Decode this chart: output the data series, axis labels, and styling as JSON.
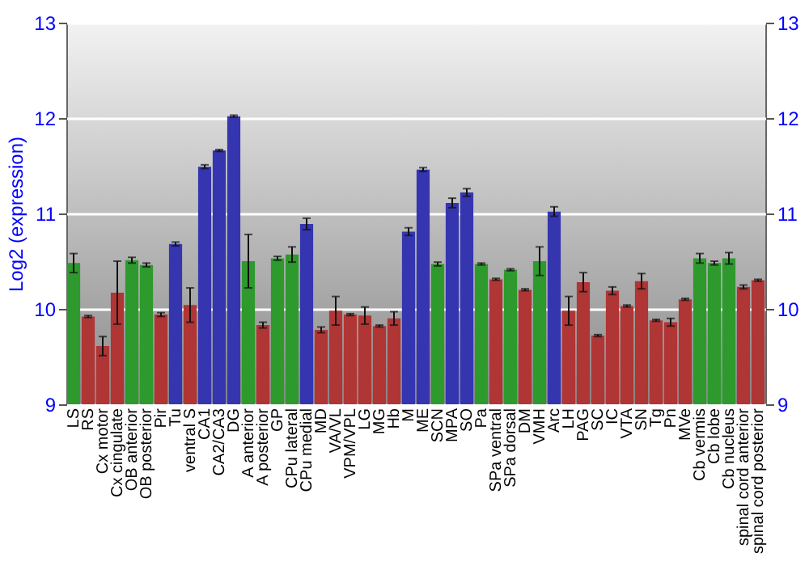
{
  "chart_data": {
    "type": "bar",
    "ylabel": "Log2 (expression)",
    "categories": [
      "LS",
      "RS",
      "Cx motor",
      "Cx cingulate",
      "OB anterior",
      "OB posterior",
      "Pir",
      "Tu",
      "ventral S",
      "CA1",
      "CA2/CA3",
      "DG",
      "A anterior",
      "A posterior",
      "GP",
      "CPu lateral",
      "CPu medial",
      "MD",
      "VA/VL",
      "VPM/VPL",
      "LG",
      "MG",
      "Hb",
      "M",
      "ME",
      "SCN",
      "MPA",
      "SO",
      "Pa",
      "SPa ventral",
      "SPa dorsal",
      "DM",
      "VMH",
      "Arc",
      "LH",
      "PAG",
      "SC",
      "IC",
      "VTA",
      "SN",
      "Tg",
      "Pn",
      "MVe",
      "Cb vermis",
      "Cb lobe",
      "Cb nucleus",
      "spinal cord anterior",
      "spinal cord posterior"
    ],
    "values": [
      10.48,
      9.92,
      9.61,
      10.17,
      10.51,
      10.46,
      9.94,
      10.68,
      10.04,
      11.49,
      11.66,
      12.02,
      10.5,
      9.83,
      10.53,
      10.57,
      10.89,
      9.78,
      9.98,
      9.94,
      9.93,
      9.82,
      9.9,
      10.81,
      11.46,
      10.47,
      11.11,
      11.22,
      10.47,
      10.31,
      10.41,
      10.2,
      10.5,
      11.02,
      9.98,
      10.28,
      9.72,
      10.19,
      10.03,
      10.29,
      9.88,
      9.86,
      10.1,
      10.53,
      10.48,
      10.53,
      10.23,
      10.3
    ],
    "errors": [
      0.1,
      0.01,
      0.1,
      0.33,
      0.03,
      0.02,
      0.02,
      0.02,
      0.18,
      0.02,
      0.01,
      0.01,
      0.28,
      0.03,
      0.02,
      0.08,
      0.06,
      0.03,
      0.15,
      0.01,
      0.09,
      0.01,
      0.07,
      0.04,
      0.02,
      0.02,
      0.05,
      0.04,
      0.01,
      0.01,
      0.01,
      0.01,
      0.15,
      0.05,
      0.15,
      0.1,
      0.01,
      0.04,
      0.01,
      0.08,
      0.01,
      0.04,
      0.01,
      0.05,
      0.02,
      0.06,
      0.02,
      0.01
    ],
    "colors": [
      "#2e9a2e",
      "#b03535",
      "#b03535",
      "#b03535",
      "#2e9a2e",
      "#2e9a2e",
      "#b03535",
      "#3535b0",
      "#b03535",
      "#3535b0",
      "#3535b0",
      "#3535b0",
      "#2e9a2e",
      "#b03535",
      "#2e9a2e",
      "#2e9a2e",
      "#3535b0",
      "#b03535",
      "#b03535",
      "#b03535",
      "#b03535",
      "#b03535",
      "#b03535",
      "#3535b0",
      "#3535b0",
      "#2e9a2e",
      "#3535b0",
      "#3535b0",
      "#2e9a2e",
      "#b03535",
      "#2e9a2e",
      "#b03535",
      "#2e9a2e",
      "#3535b0",
      "#b03535",
      "#b03535",
      "#b03535",
      "#b03535",
      "#b03535",
      "#b03535",
      "#b03535",
      "#b03535",
      "#b03535",
      "#2e9a2e",
      "#2e9a2e",
      "#2e9a2e",
      "#b03535",
      "#b03535"
    ],
    "ylim": [
      9,
      13
    ],
    "yticks": [
      9,
      10,
      11,
      12,
      13
    ],
    "y2lim": [
      9,
      13
    ],
    "y2ticks": [
      9,
      10,
      11,
      12,
      13
    ],
    "grid": true
  }
}
